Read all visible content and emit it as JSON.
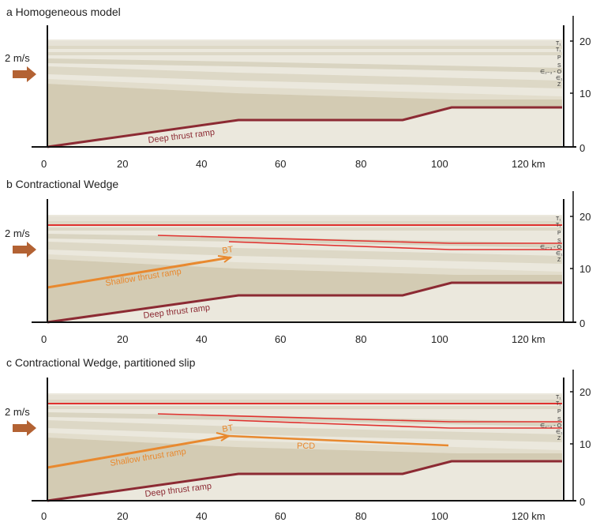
{
  "x_axis": {
    "ticks": [
      "0",
      "20",
      "40",
      "60",
      "80",
      "100",
      "120 km"
    ]
  },
  "y_axis": {
    "ticks": [
      "0",
      "10",
      "20"
    ]
  },
  "velocity_label": "2 m/s",
  "strata_labels": [
    "T₁",
    "T₁",
    "P",
    "S",
    "∈₂₋₃ - O",
    "∈₁",
    "Z"
  ],
  "colors": {
    "strata_fill": "#ddd8c6",
    "strata_light": "#ebe8dd",
    "basement_fill": "#d3cbb3",
    "deep_ramp": "#8c2a33",
    "shallow_ramp": "#e8892f",
    "detachment_red": "#e0322f",
    "arrow": "#b36233"
  },
  "panels": [
    {
      "id": "a",
      "title": "a  Homogeneous model",
      "faults": [
        {
          "label": "Deep thrust ramp"
        }
      ]
    },
    {
      "id": "b",
      "title": "b  Contractional Wedge",
      "faults": [
        {
          "label": "Deep thrust ramp"
        },
        {
          "label": "Shallow thrust ramp"
        },
        {
          "label": "BT"
        }
      ]
    },
    {
      "id": "c",
      "title": "c  Contractional Wedge, partitioned slip",
      "faults": [
        {
          "label": "Deep thrust ramp"
        },
        {
          "label": "Shallow thrust ramp"
        },
        {
          "label": "BT"
        },
        {
          "label": "PCD"
        }
      ]
    }
  ]
}
